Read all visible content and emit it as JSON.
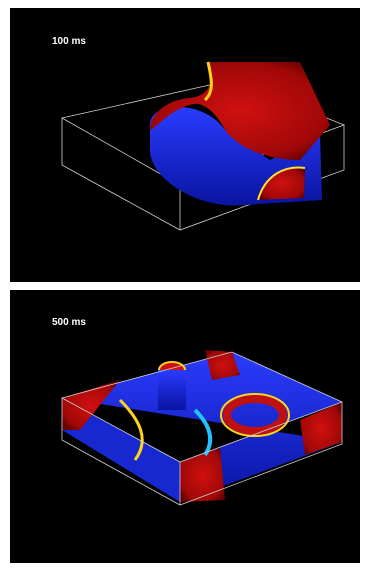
{
  "panels": [
    {
      "label": "100 ms"
    },
    {
      "label": "500 ms"
    }
  ]
}
